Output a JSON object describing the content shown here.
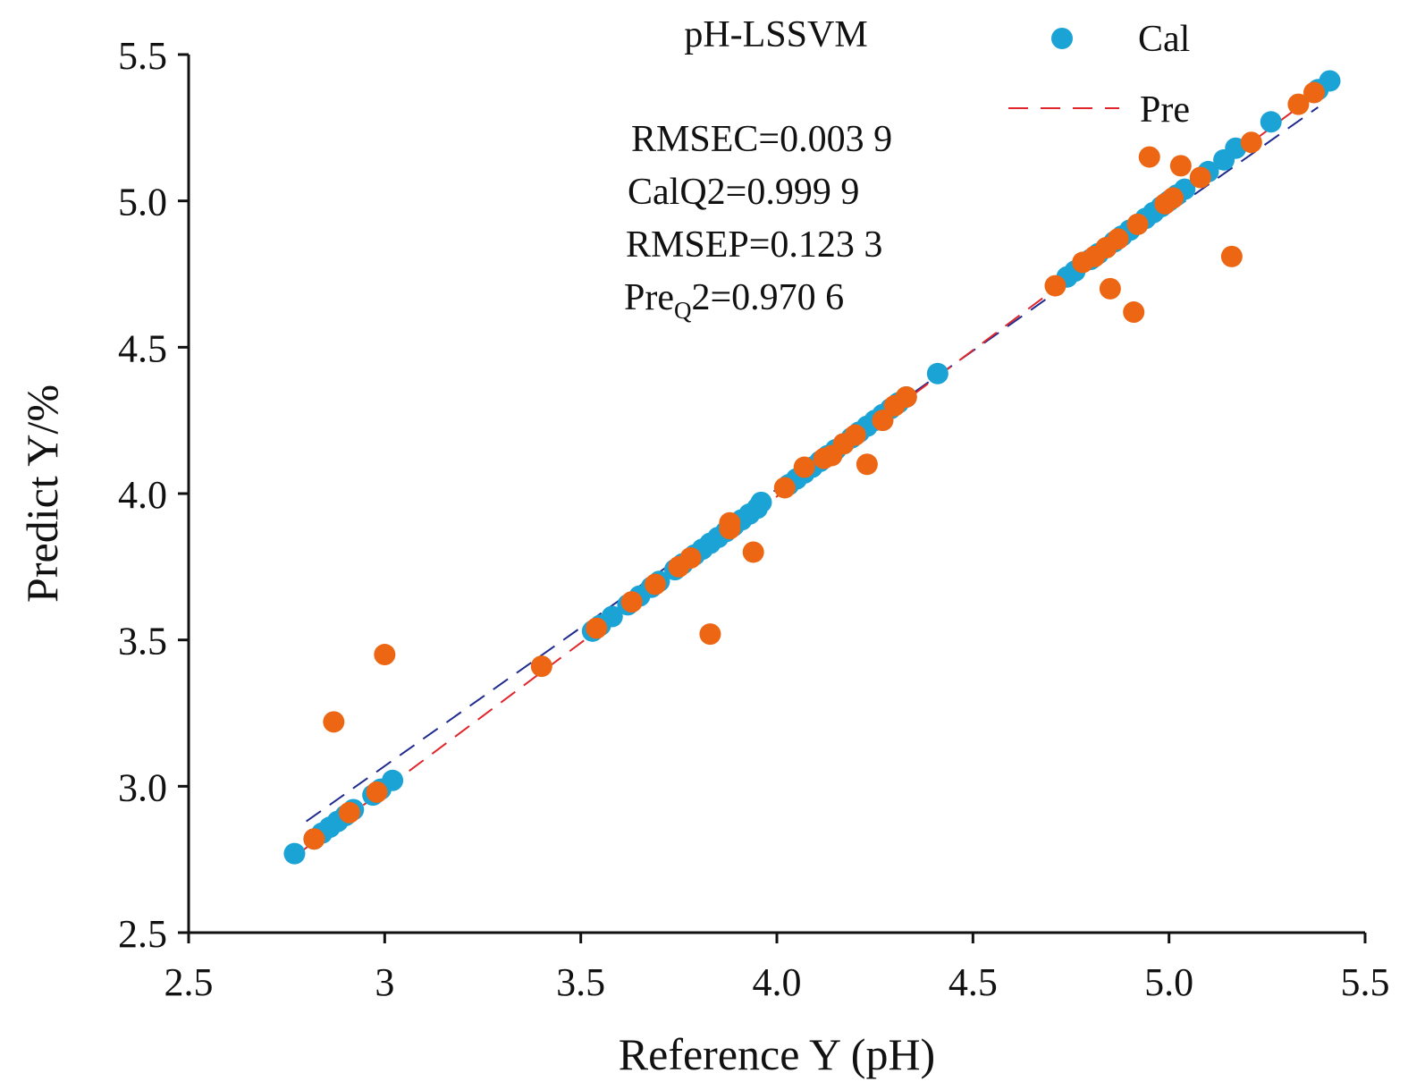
{
  "chart_data": {
    "type": "scatter",
    "title": "pH-LSSVM",
    "xlabel": "Reference Y (pH)",
    "ylabel": "Predict Y/%",
    "xlim": [
      2.5,
      5.5
    ],
    "ylim": [
      2.5,
      5.5
    ],
    "xticks": [
      "2.5",
      "3",
      "3.5",
      "4.0",
      "4.5",
      "5.0",
      "5.5"
    ],
    "yticks": [
      "2.5",
      "3.0",
      "3.5",
      "4.0",
      "4.5",
      "5.0",
      "5.5"
    ],
    "grid": false,
    "legend_position": "top-right",
    "legend": [
      {
        "label": "Cal",
        "kind": "marker",
        "color": "#1ba3d6"
      },
      {
        "label": "Pre",
        "kind": "dashed-line",
        "color": "#e0262b"
      }
    ],
    "annotations": {
      "rmsec": "RMSEC=0.003 9",
      "calq2": "CalQ2=0.999 9",
      "rmsep": "RMSEP=0.123 3",
      "preq2_prefix": "Pre",
      "preq2_sub": "Q",
      "preq2_suffix": "2=0.970 6"
    },
    "fit_lines": [
      {
        "color": "#1f2b8f",
        "x": [
          2.8,
          5.38
        ],
        "y": [
          2.88,
          5.32
        ]
      },
      {
        "color": "#e0262b",
        "x": [
          2.77,
          5.4
        ],
        "y": [
          2.76,
          5.39
        ]
      }
    ],
    "series": [
      {
        "name": "Cal",
        "color": "#1ba3d6",
        "x": [
          2.77,
          2.82,
          2.84,
          2.86,
          2.88,
          2.9,
          2.92,
          2.97,
          2.99,
          3.02,
          3.53,
          3.55,
          3.58,
          3.62,
          3.65,
          3.68,
          3.7,
          3.74,
          3.76,
          3.79,
          3.81,
          3.83,
          3.85,
          3.87,
          3.89,
          3.91,
          3.93,
          3.95,
          3.96,
          4.03,
          4.05,
          4.07,
          4.09,
          4.11,
          4.13,
          4.15,
          4.17,
          4.19,
          4.21,
          4.23,
          4.25,
          4.27,
          4.29,
          4.31,
          4.33,
          4.41,
          4.74,
          4.76,
          4.8,
          4.82,
          4.84,
          4.86,
          4.88,
          4.9,
          4.92,
          4.94,
          4.96,
          4.98,
          5.0,
          5.02,
          5.04,
          5.1,
          5.14,
          5.17,
          5.26,
          5.38,
          5.41
        ],
        "y": [
          2.77,
          2.82,
          2.84,
          2.86,
          2.88,
          2.9,
          2.92,
          2.97,
          2.99,
          3.02,
          3.53,
          3.55,
          3.58,
          3.62,
          3.65,
          3.68,
          3.7,
          3.74,
          3.76,
          3.79,
          3.81,
          3.83,
          3.85,
          3.87,
          3.89,
          3.91,
          3.93,
          3.95,
          3.97,
          4.03,
          4.05,
          4.07,
          4.09,
          4.11,
          4.13,
          4.15,
          4.17,
          4.19,
          4.21,
          4.23,
          4.25,
          4.27,
          4.29,
          4.31,
          4.33,
          4.41,
          4.74,
          4.76,
          4.8,
          4.82,
          4.84,
          4.86,
          4.88,
          4.9,
          4.92,
          4.94,
          4.96,
          4.98,
          5.0,
          5.02,
          5.04,
          5.1,
          5.14,
          5.18,
          5.27,
          5.38,
          5.41
        ]
      },
      {
        "name": "Pre",
        "color": "#ec6614",
        "x": [
          2.82,
          2.87,
          2.91,
          2.98,
          3.0,
          3.4,
          3.54,
          3.63,
          3.69,
          3.75,
          3.78,
          3.83,
          3.88,
          3.88,
          3.94,
          4.02,
          4.07,
          4.12,
          4.14,
          4.17,
          4.2,
          4.23,
          4.27,
          4.3,
          4.33,
          4.71,
          4.78,
          4.81,
          4.84,
          4.85,
          4.87,
          4.91,
          4.92,
          4.95,
          4.99,
          5.01,
          5.03,
          5.08,
          5.16,
          5.21,
          5.33,
          5.37
        ],
        "y": [
          2.82,
          3.22,
          2.91,
          2.98,
          3.45,
          3.41,
          3.54,
          3.63,
          3.69,
          3.75,
          3.78,
          3.52,
          3.88,
          3.9,
          3.8,
          4.02,
          4.09,
          4.12,
          4.13,
          4.17,
          4.2,
          4.1,
          4.25,
          4.3,
          4.33,
          4.71,
          4.79,
          4.81,
          4.84,
          4.7,
          4.87,
          4.62,
          4.92,
          5.15,
          4.99,
          5.01,
          5.12,
          5.08,
          4.81,
          5.2,
          5.33,
          5.37
        ]
      }
    ]
  }
}
